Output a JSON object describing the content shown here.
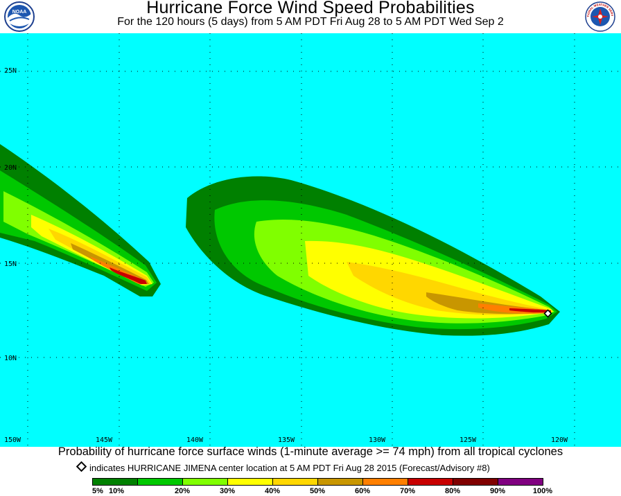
{
  "header": {
    "title": "Hurricane Force Wind Speed Probabilities",
    "subtitle": "For the 120 hours (5 days) from 5 AM PDT Fri Aug 28 to 5 AM PDT Wed Sep 2"
  },
  "logos": {
    "left": "noaa-logo",
    "right": "nws-logo",
    "right_text": "NATIONAL WEATHER SERVICE"
  },
  "map": {
    "background_color": "#00ffff",
    "latitude_labels": [
      "25N",
      "20N",
      "15N",
      "10N"
    ],
    "longitude_labels": [
      "150W",
      "145W",
      "140W",
      "135W",
      "130W",
      "125W",
      "120W"
    ]
  },
  "footer": {
    "caption": "Probability of hurricane force surface winds (1-minute average >= 74 mph) from all tropical cyclones",
    "advisory_text": "indicates HURRICANE JIMENA center location at 5 AM PDT Fri Aug 28 2015 (Forecast/Advisory #8)"
  },
  "legend": {
    "labels": [
      "5%",
      "10%",
      "20%",
      "30%",
      "40%",
      "50%",
      "60%",
      "70%",
      "80%",
      "90%",
      "100%"
    ],
    "colors": [
      "#008000",
      "#00c800",
      "#80ff00",
      "#ffff00",
      "#ffd700",
      "#c89600",
      "#ff7f00",
      "#c80000",
      "#800000",
      "#800080"
    ]
  }
}
